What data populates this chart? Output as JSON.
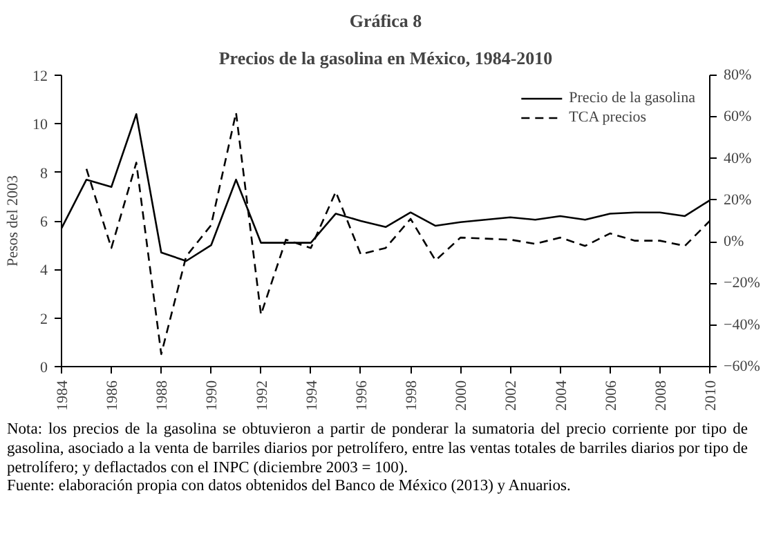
{
  "chart_data": {
    "type": "line",
    "title": "Gráfica 8",
    "subtitle": "Precios de la gasolina en México, 1984-2010",
    "ylabel": "Pesos del 2003",
    "x": [
      1984,
      1985,
      1986,
      1987,
      1988,
      1989,
      1990,
      1991,
      1992,
      1993,
      1994,
      1995,
      1996,
      1997,
      1998,
      1999,
      2000,
      2001,
      2002,
      2003,
      2004,
      2005,
      2006,
      2007,
      2008,
      2009,
      2010
    ],
    "series": [
      {
        "name": "Precio de la gasolina",
        "color": "#000000",
        "line_style": "solid",
        "values": [
          5.7,
          7.7,
          7.4,
          10.4,
          4.7,
          4.35,
          5.0,
          7.7,
          5.1,
          5.1,
          5.1,
          6.3,
          6.0,
          5.75,
          6.35,
          5.8,
          5.95,
          6.05,
          6.15,
          6.05,
          6.2,
          6.05,
          6.3,
          6.35,
          6.35,
          6.2,
          6.85
        ]
      },
      {
        "name": "TCA precios",
        "color": "#000000",
        "line_style": "dashed",
        "axis": "y2",
        "values": [
          null,
          35,
          -3,
          38,
          -54,
          -7,
          8,
          62,
          -35,
          1,
          -3,
          24,
          -6,
          -3,
          11,
          -9,
          2,
          1.5,
          1,
          -1,
          2,
          -2,
          4,
          0.5,
          0.5,
          -2,
          10
        ]
      }
    ],
    "xlim": [
      1984,
      2010
    ],
    "xticks": [
      1984,
      1986,
      1988,
      1990,
      1992,
      1994,
      1996,
      1998,
      2000,
      2002,
      2004,
      2006,
      2008,
      2010
    ],
    "ylim": [
      0,
      12
    ],
    "yticks": [
      0,
      2,
      4,
      6,
      8,
      10,
      12
    ],
    "y2lim": [
      -60,
      80
    ],
    "y2ticks": [
      {
        "value": -60,
        "label": "−60%"
      },
      {
        "value": -40,
        "label": "−40%"
      },
      {
        "value": -20,
        "label": "−20%"
      },
      {
        "value": 0,
        "label": "0%"
      },
      {
        "value": 20,
        "label": "20%"
      },
      {
        "value": 40,
        "label": "40%"
      },
      {
        "value": 60,
        "label": "60%"
      },
      {
        "value": 80,
        "label": "80%"
      }
    ],
    "grid": false,
    "legend": "top right",
    "annotations": [
      "Nota: los precios de la gasolina se obtuvieron a partir de ponderar la sumatoria del precio corriente por tipo de gasolina, asociado a la venta de barriles diarios por petrolífero, entre las ventas totales de barriles diarios por tipo de petrolífero; y deflactados con el INPC (diciembre 2003 = 100).",
      "Fuente: elaboración propia con datos obtenidos del Banco de México (2013) y Anuarios."
    ]
  }
}
